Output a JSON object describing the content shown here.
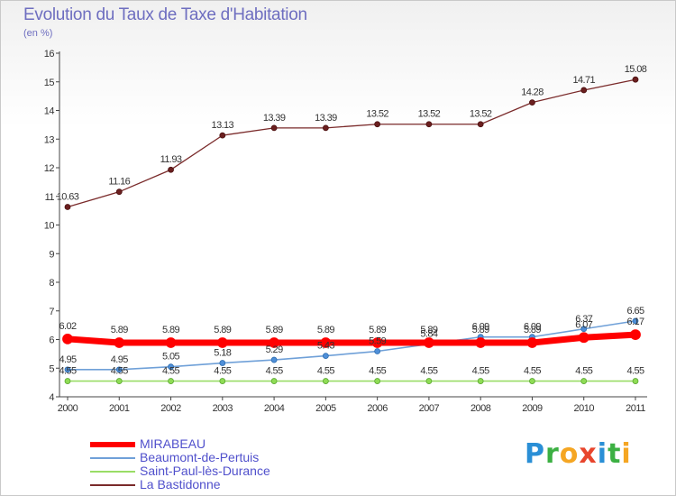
{
  "title": "Evolution du Taux de Taxe d'Habitation",
  "subtitle": "(en %)",
  "brand": {
    "text": "Proxiti",
    "letters": [
      {
        "ch": "P",
        "color": "#2a8fd6"
      },
      {
        "ch": "r",
        "color": "#3cb043"
      },
      {
        "ch": "o",
        "color": "#f5a623"
      },
      {
        "ch": "x",
        "color": "#e8452c"
      },
      {
        "ch": "i",
        "color": "#2a8fd6"
      },
      {
        "ch": "t",
        "color": "#3cb043"
      },
      {
        "ch": "i",
        "color": "#f5a623"
      }
    ]
  },
  "chart_data": {
    "type": "line",
    "title": "Evolution du Taux de Taxe d'Habitation",
    "ylabel": "(en %)",
    "xlabel": "",
    "x": [
      "2000",
      "2001",
      "2002",
      "2003",
      "2004",
      "2005",
      "2006",
      "2007",
      "2008",
      "2009",
      "2010",
      "2011"
    ],
    "yticks": [
      4,
      5,
      6,
      7,
      8,
      9,
      10,
      11,
      12,
      13,
      14,
      15,
      16
    ],
    "ylim": [
      4,
      16
    ],
    "grid": false,
    "series": [
      {
        "name": "MIRABEAU",
        "color": "#ff0000",
        "values": [
          6.02,
          5.89,
          5.89,
          5.89,
          5.89,
          5.89,
          5.89,
          5.89,
          5.89,
          5.89,
          6.07,
          6.17
        ],
        "labels": [
          "6.02",
          "5.89",
          "5.89",
          "5.89",
          "5.89",
          "5.89",
          "5.89",
          "5.89",
          "5.89",
          "5.89",
          "6.07",
          "6.17"
        ]
      },
      {
        "name": "Beaumont-de-Pertuis",
        "color": "#6fa0d8",
        "values": [
          4.95,
          4.95,
          5.05,
          5.18,
          5.29,
          5.43,
          5.59,
          5.84,
          6.09,
          6.09,
          6.37,
          6.65
        ],
        "labels": [
          "4.95",
          "4.95",
          "5.05",
          "5.18",
          "5.29",
          "5.43",
          "5.59",
          "5.84",
          "6.09",
          "6.09",
          "6.37",
          "6.65"
        ]
      },
      {
        "name": "Saint-Paul-lès-Durance",
        "color": "#99dd66",
        "values": [
          4.55,
          4.55,
          4.55,
          4.55,
          4.55,
          4.55,
          4.55,
          4.55,
          4.55,
          4.55,
          4.55,
          4.55
        ],
        "labels": [
          "4.55",
          "4.55",
          "4.55",
          "4.55",
          "4.55",
          "4.55",
          "4.55",
          "4.55",
          "4.55",
          "4.55",
          "4.55",
          "4.55"
        ]
      },
      {
        "name": "La Bastidonne",
        "color": "#7a2a2a",
        "values": [
          10.63,
          11.16,
          11.93,
          13.13,
          13.39,
          13.39,
          13.52,
          13.52,
          13.52,
          14.28,
          14.71,
          15.08
        ],
        "labels": [
          "10.63",
          "11.16",
          "11.93",
          "13.13",
          "13.39",
          "13.39",
          "13.52",
          "13.52",
          "13.52",
          "14.28",
          "14.71",
          "15.08"
        ]
      }
    ]
  }
}
